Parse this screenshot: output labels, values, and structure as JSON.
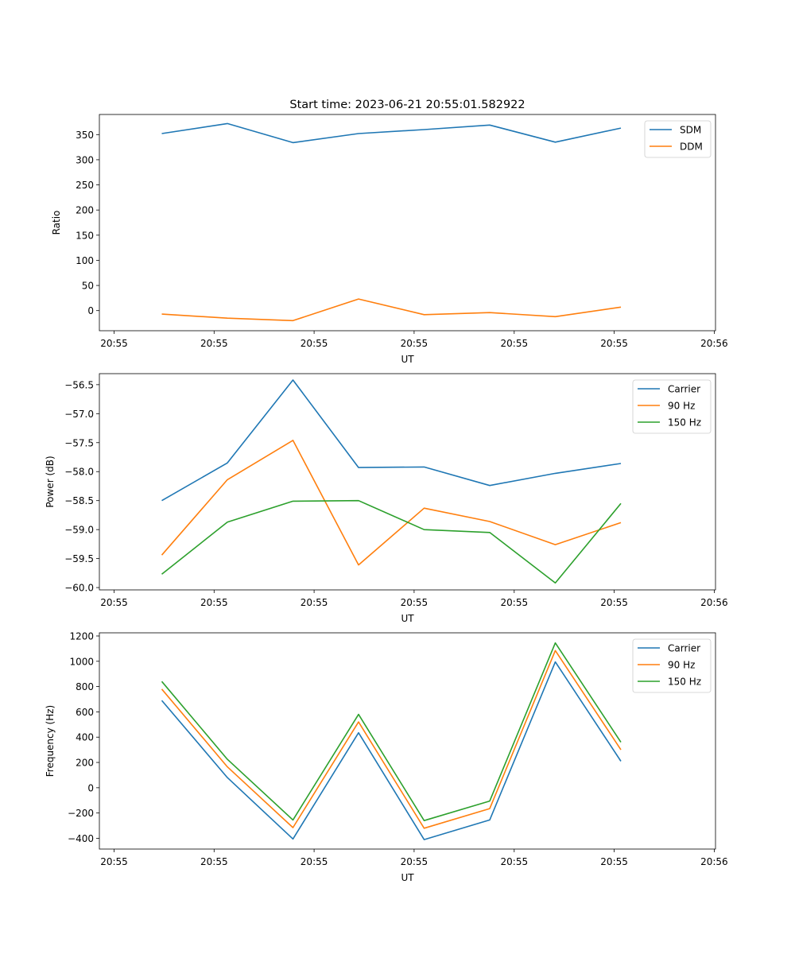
{
  "figure_title": "Start time: 2023-06-21 20:55:01.582922",
  "chart_data": [
    {
      "type": "line",
      "xlabel": "UT",
      "ylabel": "Ratio",
      "x_tick_labels": [
        "20:55",
        "20:55",
        "20:55",
        "20:55",
        "20:55",
        "20:55",
        "20:56"
      ],
      "y_ticks": [
        0,
        50,
        100,
        150,
        200,
        250,
        300,
        350
      ],
      "y_tick_labels": [
        "0",
        "50",
        "100",
        "150",
        "200",
        "250",
        "300",
        "350"
      ],
      "ylim": [
        -40,
        390
      ],
      "legend_position": "upper right",
      "grid": false,
      "series": [
        {
          "name": "SDM",
          "color": "#1f77b4",
          "values": [
            352,
            372,
            334,
            352,
            360,
            369,
            335,
            363
          ]
        },
        {
          "name": "DDM",
          "color": "#ff7f0e",
          "values": [
            -7,
            -15,
            -20,
            23,
            -8,
            -4,
            -12,
            7
          ]
        }
      ]
    },
    {
      "type": "line",
      "xlabel": "UT",
      "ylabel": "Power (dB)",
      "x_tick_labels": [
        "20:55",
        "20:55",
        "20:55",
        "20:55",
        "20:55",
        "20:55",
        "20:56"
      ],
      "y_ticks": [
        -60.0,
        -59.5,
        -59.0,
        -58.5,
        -58.0,
        -57.5,
        -57.0,
        -56.5
      ],
      "y_tick_labels": [
        "−60.0",
        "−59.5",
        "−59.0",
        "−58.5",
        "−58.0",
        "−57.5",
        "−57.0",
        "−56.5"
      ],
      "ylim": [
        -60.04,
        -56.31
      ],
      "legend_position": "upper right",
      "grid": false,
      "series": [
        {
          "name": "Carrier",
          "color": "#1f77b4",
          "values": [
            -58.5,
            -57.85,
            -56.42,
            -57.93,
            -57.92,
            -58.24,
            -58.03,
            -57.86
          ]
        },
        {
          "name": "90 Hz",
          "color": "#ff7f0e",
          "values": [
            -59.44,
            -58.14,
            -57.46,
            -59.61,
            -58.63,
            -58.86,
            -59.26,
            -58.88
          ]
        },
        {
          "name": "150 Hz",
          "color": "#2ca02c",
          "values": [
            -59.77,
            -58.87,
            -58.51,
            -58.5,
            -59.0,
            -59.05,
            -59.92,
            -58.55
          ]
        }
      ]
    },
    {
      "type": "line",
      "xlabel": "UT",
      "ylabel": "Frequency (Hz)",
      "x_tick_labels": [
        "20:55",
        "20:55",
        "20:55",
        "20:55",
        "20:55",
        "20:55",
        "20:56"
      ],
      "y_ticks": [
        -400,
        -200,
        0,
        200,
        400,
        600,
        800,
        1000,
        1200
      ],
      "y_tick_labels": [
        "−400",
        "−200",
        "0",
        "200",
        "400",
        "600",
        "800",
        "1000",
        "1200"
      ],
      "ylim": [
        -485,
        1225
      ],
      "legend_position": "upper right",
      "grid": false,
      "series": [
        {
          "name": "Carrier",
          "color": "#1f77b4",
          "values": [
            690,
            80,
            -405,
            435,
            -410,
            -255,
            995,
            210
          ]
        },
        {
          "name": "90 Hz",
          "color": "#ff7f0e",
          "values": [
            780,
            165,
            -315,
            520,
            -320,
            -165,
            1085,
            300
          ]
        },
        {
          "name": "150 Hz",
          "color": "#2ca02c",
          "values": [
            840,
            225,
            -255,
            580,
            -260,
            -105,
            1145,
            360
          ]
        }
      ]
    }
  ]
}
